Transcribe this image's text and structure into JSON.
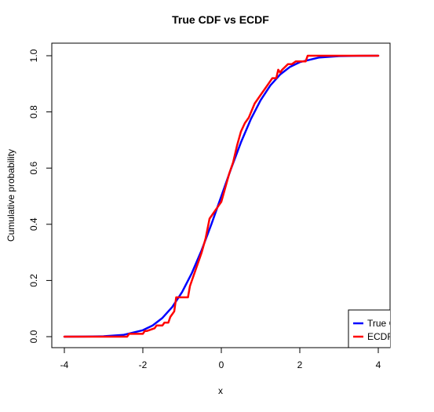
{
  "chart_data": {
    "type": "line",
    "title": "True CDF vs ECDF",
    "xlabel": "x",
    "ylabel": "Cumulative probability",
    "xlim": [
      -4,
      4
    ],
    "ylim": [
      0,
      1
    ],
    "x_ticks": [
      "-4",
      "-2",
      "0",
      "2",
      "4"
    ],
    "y_ticks": [
      "0.0",
      "0.2",
      "0.4",
      "0.6",
      "0.8",
      "1.0"
    ],
    "legend": {
      "placement": "bottom-right",
      "entries": [
        "True CDF",
        "ECDF"
      ]
    },
    "series": [
      {
        "name": "True CDF",
        "color": "#0000ff",
        "x": [
          -4.0,
          -3.5,
          -3.0,
          -2.5,
          -2.0,
          -1.75,
          -1.5,
          -1.25,
          -1.0,
          -0.75,
          -0.5,
          -0.25,
          0.0,
          0.25,
          0.5,
          0.75,
          1.0,
          1.25,
          1.5,
          1.75,
          2.0,
          2.5,
          3.0,
          3.5,
          4.0
        ],
        "y": [
          0.0,
          0.0002,
          0.0013,
          0.0062,
          0.0228,
          0.04,
          0.0668,
          0.1056,
          0.1587,
          0.2266,
          0.3085,
          0.4013,
          0.5,
          0.5987,
          0.6915,
          0.7734,
          0.8413,
          0.8944,
          0.9332,
          0.96,
          0.9772,
          0.9938,
          0.9987,
          0.9998,
          1.0
        ]
      },
      {
        "name": "ECDF",
        "color": "#ff0000",
        "x": [
          -4.0,
          -2.4,
          -2.35,
          -2.0,
          -1.95,
          -1.9,
          -1.9,
          -1.7,
          -1.65,
          -1.5,
          -1.45,
          -1.35,
          -1.3,
          -1.2,
          -1.15,
          -1.05,
          -1.0,
          -0.85,
          -0.8,
          -0.65,
          -0.5,
          -0.4,
          -0.3,
          -0.2,
          -0.1,
          -0.05,
          0.0,
          0.1,
          0.2,
          0.3,
          0.4,
          0.5,
          0.6,
          0.7,
          0.85,
          1.0,
          1.1,
          1.2,
          1.3,
          1.4,
          1.45,
          1.5,
          1.55,
          1.7,
          1.8,
          1.9,
          2.0,
          2.15,
          2.2,
          2.5,
          3.0,
          4.0
        ],
        "y": [
          0.0,
          0.0,
          0.01,
          0.01,
          0.02,
          0.02,
          0.02,
          0.03,
          0.04,
          0.04,
          0.05,
          0.05,
          0.07,
          0.09,
          0.14,
          0.14,
          0.14,
          0.14,
          0.18,
          0.24,
          0.3,
          0.35,
          0.42,
          0.44,
          0.46,
          0.47,
          0.48,
          0.53,
          0.58,
          0.62,
          0.68,
          0.73,
          0.76,
          0.78,
          0.83,
          0.86,
          0.88,
          0.9,
          0.92,
          0.92,
          0.95,
          0.94,
          0.95,
          0.97,
          0.97,
          0.98,
          0.98,
          0.98,
          1.0,
          1.0,
          1.0,
          1.0
        ]
      }
    ]
  }
}
